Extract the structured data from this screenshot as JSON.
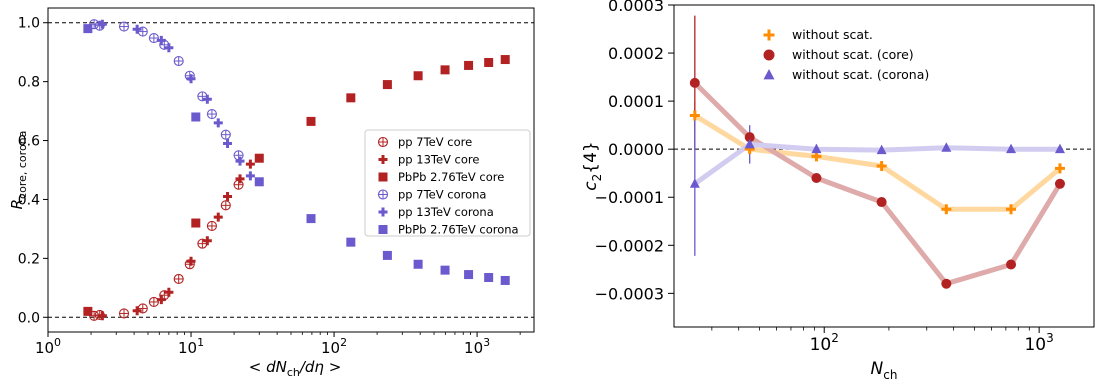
{
  "chart_data": [
    {
      "type": "scatter",
      "xscale": "log",
      "xlim": [
        1,
        2500
      ],
      "ylim": [
        -0.05,
        1.05
      ],
      "xlabel": "< dN_ch/dη >",
      "ylabel": "R_core, corona",
      "xticks": [
        {
          "value": 1,
          "base": "10",
          "exp": "0"
        },
        {
          "value": 10,
          "base": "10",
          "exp": "1"
        },
        {
          "value": 100,
          "base": "10",
          "exp": "2"
        },
        {
          "value": 1000,
          "base": "10",
          "exp": "3"
        }
      ],
      "yticks": [
        {
          "value": 0.0,
          "label": "0.0"
        },
        {
          "value": 0.2,
          "label": "0.2"
        },
        {
          "value": 0.4,
          "label": "0.4"
        },
        {
          "value": 0.6,
          "label": "0.6"
        },
        {
          "value": 0.8,
          "label": "0.8"
        },
        {
          "value": 1.0,
          "label": "1.0"
        }
      ],
      "hlines": [
        0,
        1
      ],
      "legend": "center-right",
      "series": [
        {
          "name": "pp 7TeV core",
          "marker": "circle-cross",
          "color": "#b22222",
          "x": [
            2.1,
            2.3,
            3.4,
            4.6,
            5.5,
            6.5,
            8.2,
            9.8,
            12.0,
            14.0,
            17.5,
            21.5
          ],
          "y": [
            0.005,
            0.008,
            0.013,
            0.03,
            0.052,
            0.075,
            0.13,
            0.18,
            0.25,
            0.31,
            0.38,
            0.45
          ]
        },
        {
          "name": "pp 13TeV core",
          "marker": "plus",
          "color": "#b22222",
          "x": [
            2.4,
            4.2,
            6.2,
            7.0,
            10.0,
            13.0,
            15.5,
            18.0,
            22.0,
            26.0
          ],
          "y": [
            0.005,
            0.022,
            0.06,
            0.085,
            0.19,
            0.26,
            0.34,
            0.41,
            0.47,
            0.52
          ]
        },
        {
          "name": "PbPb 2.76TeV core",
          "marker": "square",
          "color": "#b22222",
          "x": [
            1.9,
            10.8,
            30.0,
            69.0,
            131.0,
            236.0,
            387.0,
            597.0,
            872.0,
            1205.0,
            1573.0
          ],
          "y": [
            0.02,
            0.32,
            0.54,
            0.665,
            0.745,
            0.79,
            0.82,
            0.84,
            0.855,
            0.865,
            0.875
          ]
        },
        {
          "name": "pp 7TeV corona",
          "marker": "circle-cross",
          "color": "#6a5acd",
          "x": [
            2.1,
            2.3,
            3.4,
            4.6,
            5.5,
            6.5,
            8.2,
            9.8,
            12.0,
            14.0,
            17.5,
            21.5
          ],
          "y": [
            0.995,
            0.99,
            0.987,
            0.97,
            0.948,
            0.925,
            0.87,
            0.82,
            0.75,
            0.69,
            0.62,
            0.55
          ]
        },
        {
          "name": "pp 13TeV corona",
          "marker": "plus",
          "color": "#6a5acd",
          "x": [
            2.4,
            4.2,
            6.2,
            7.0,
            10.0,
            13.0,
            15.5,
            18.0,
            22.0,
            26.0
          ],
          "y": [
            0.995,
            0.978,
            0.94,
            0.915,
            0.81,
            0.74,
            0.66,
            0.59,
            0.53,
            0.48
          ]
        },
        {
          "name": "PbPb 2.76TeV corona",
          "marker": "square",
          "color": "#6a5acd",
          "x": [
            1.9,
            10.8,
            30.0,
            69.0,
            131.0,
            236.0,
            387.0,
            597.0,
            872.0,
            1205.0,
            1573.0
          ],
          "y": [
            0.98,
            0.68,
            0.46,
            0.335,
            0.255,
            0.21,
            0.18,
            0.16,
            0.145,
            0.135,
            0.125
          ]
        }
      ]
    },
    {
      "type": "line",
      "xscale": "log",
      "xlim": [
        20,
        1800
      ],
      "ylim": [
        -0.00037,
        0.0003
      ],
      "xlabel": "N_ch",
      "ylabel": "c_2{4}",
      "xticks": [
        {
          "value": 100,
          "base": "10",
          "exp": "2"
        },
        {
          "value": 1000,
          "base": "10",
          "exp": "3"
        }
      ],
      "yticks": [
        {
          "value": 0.0003,
          "label": "0.0003"
        },
        {
          "value": 0.0002,
          "label": "0.0002"
        },
        {
          "value": 0.0001,
          "label": "0.0001"
        },
        {
          "value": 0.0,
          "label": "0.0000"
        },
        {
          "value": -0.0001,
          "label": "−0.0001"
        },
        {
          "value": -0.0002,
          "label": "−0.0002"
        },
        {
          "value": -0.0003,
          "label": "−0.0003"
        }
      ],
      "hlines": [
        0
      ],
      "legend": "top-center",
      "series": [
        {
          "name": "without scat.",
          "marker": "plus",
          "color": "#ff8c00",
          "linecolor": "#ffd8a0",
          "x": [
            25,
            45,
            92,
            185,
            370,
            740,
            1250
          ],
          "y": [
            7e-05,
            0.0,
            -1.5e-05,
            -3.5e-05,
            -0.000125,
            -0.000125,
            -4e-05
          ],
          "err": [
            3e-05,
            5e-06,
            5e-06,
            5e-06,
            5e-06,
            5e-06,
            5e-06
          ]
        },
        {
          "name": "without scat. (core)",
          "marker": "circle",
          "color": "#b22222",
          "linecolor": "#deaaaa",
          "x": [
            25,
            45,
            92,
            185,
            370,
            740,
            1250
          ],
          "y": [
            0.000138,
            2.5e-05,
            -6e-05,
            -0.00011,
            -0.00028,
            -0.00024,
            -7.2e-05
          ],
          "err": [
            0.00014,
            2e-06,
            2e-06,
            2e-06,
            2e-06,
            2e-06,
            2e-06
          ]
        },
        {
          "name": "without scat. (corona)",
          "marker": "triangle",
          "color": "#6a5acd",
          "linecolor": "#d2ccf0",
          "x": [
            25,
            45,
            92,
            185,
            370,
            740,
            1250
          ],
          "y": [
            -7.2e-05,
            1e-05,
            0.0,
            -2e-06,
            3e-06,
            0.0,
            0.0
          ],
          "err": [
            0.00015,
            4e-05,
            1e-05,
            5e-06,
            5e-06,
            5e-06,
            5e-06
          ]
        }
      ]
    }
  ]
}
